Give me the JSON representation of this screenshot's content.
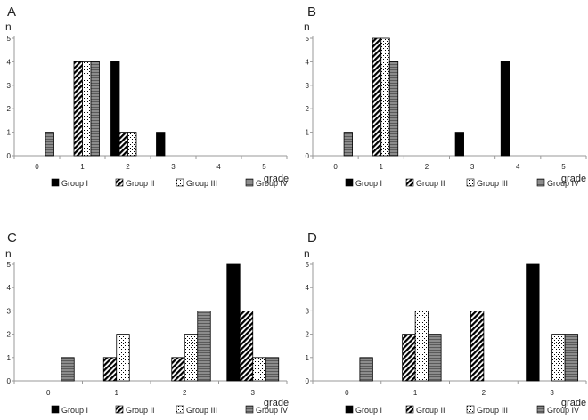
{
  "colors": {
    "group_i": "#000000",
    "group_iv": "#8c8c8c",
    "axis": "#9a9a9a",
    "text": "#222222"
  },
  "chart_data": [
    {
      "panel_label": "A",
      "type": "bar",
      "ylabel": "n",
      "xlabel": "grade",
      "ylim": [
        0,
        5
      ],
      "yticks": [
        "0",
        "1",
        "2",
        "3",
        "4",
        "5"
      ],
      "categories": [
        "0",
        "1",
        "2",
        "3",
        "4",
        "5"
      ],
      "series": [
        {
          "name": "Group I",
          "values": [
            0,
            0,
            4,
            1,
            0,
            0
          ]
        },
        {
          "name": "Group II",
          "values": [
            0,
            4,
            1,
            0,
            0,
            0
          ]
        },
        {
          "name": "Group III",
          "values": [
            0,
            4,
            1,
            0,
            0,
            0
          ]
        },
        {
          "name": "Group IV",
          "values": [
            1,
            4,
            0,
            0,
            0,
            0
          ]
        }
      ],
      "legend": [
        "Group I",
        "Group II",
        "Group III",
        "Group IV"
      ]
    },
    {
      "panel_label": "B",
      "type": "bar",
      "ylabel": "n",
      "xlabel": "grade",
      "ylim": [
        0,
        5
      ],
      "yticks": [
        "0",
        "1",
        "2",
        "3",
        "4",
        "5"
      ],
      "categories": [
        "0",
        "1",
        "2",
        "3",
        "4",
        "5"
      ],
      "series": [
        {
          "name": "Group I",
          "values": [
            0,
            0,
            0,
            1,
            4,
            0
          ]
        },
        {
          "name": "Group II",
          "values": [
            0,
            5,
            0,
            0,
            0,
            0
          ]
        },
        {
          "name": "Group III",
          "values": [
            0,
            5,
            0,
            0,
            0,
            0
          ]
        },
        {
          "name": "Group IV",
          "values": [
            1,
            4,
            0,
            0,
            0,
            0
          ]
        }
      ],
      "legend": [
        "Group I",
        "Group II",
        "Group III",
        "Group IV"
      ]
    },
    {
      "panel_label": "C",
      "type": "bar",
      "ylabel": "n",
      "xlabel": "grade",
      "ylim": [
        0,
        5
      ],
      "yticks": [
        "0",
        "1",
        "2",
        "3",
        "4",
        "5"
      ],
      "categories": [
        "0",
        "1",
        "2",
        "3"
      ],
      "series": [
        {
          "name": "Group I",
          "values": [
            0,
            0,
            0,
            5
          ]
        },
        {
          "name": "Group II",
          "values": [
            0,
            1,
            1,
            3
          ]
        },
        {
          "name": "Group III",
          "values": [
            0,
            2,
            2,
            1
          ]
        },
        {
          "name": "Group IV",
          "values": [
            1,
            0,
            3,
            1
          ]
        }
      ],
      "legend": [
        "Group I",
        "Group II",
        "Group III",
        "Group IV"
      ]
    },
    {
      "panel_label": "D",
      "type": "bar",
      "ylabel": "n",
      "xlabel": "grade",
      "ylim": [
        0,
        5
      ],
      "yticks": [
        "0",
        "1",
        "2",
        "3",
        "4",
        "5"
      ],
      "categories": [
        "0",
        "1",
        "2",
        "3"
      ],
      "series": [
        {
          "name": "Group I",
          "values": [
            0,
            0,
            0,
            5
          ]
        },
        {
          "name": "Group II",
          "values": [
            0,
            2,
            3,
            0
          ]
        },
        {
          "name": "Group III",
          "values": [
            0,
            3,
            0,
            2
          ]
        },
        {
          "name": "Group IV",
          "values": [
            1,
            2,
            0,
            2
          ]
        }
      ],
      "legend": [
        "Group I",
        "Group II",
        "Group III",
        "Group IV"
      ]
    }
  ]
}
